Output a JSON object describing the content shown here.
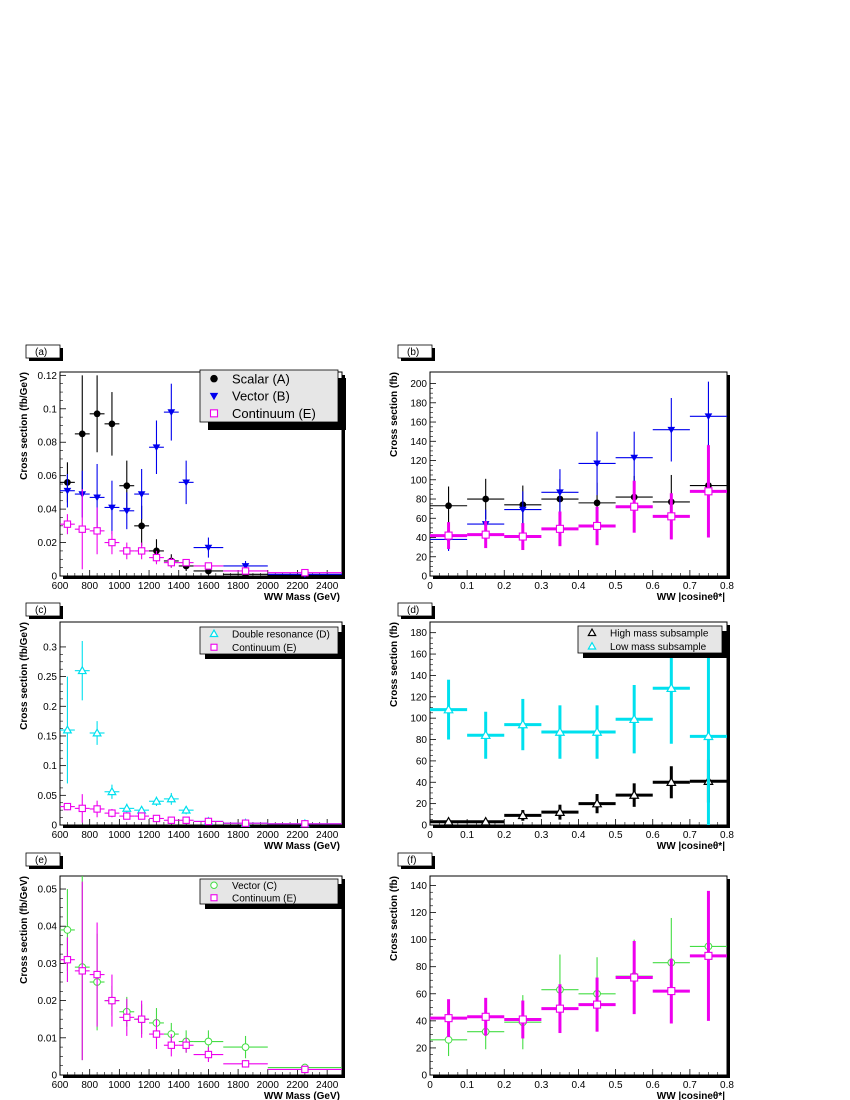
{
  "chart_data": [
    {
      "type": "scatter",
      "panel_label": "(a)",
      "xlabel": "WW Mass (GeV)",
      "ylabel": "Cross section (fb/GeV)",
      "xlim": [
        600,
        2500
      ],
      "ylim": [
        0,
        0.122
      ],
      "xticks": [
        600,
        800,
        1000,
        1200,
        1400,
        1600,
        1800,
        2000,
        2200,
        2400
      ],
      "yticks": [
        0,
        0.02,
        0.04,
        0.06,
        0.08,
        0.1,
        0.12
      ],
      "legend_position": "top-right",
      "legend_font": 13,
      "series": [
        {
          "name": "Scalar (A)",
          "marker": "circle-filled",
          "color": "#000000",
          "x": [
            650,
            750,
            850,
            950,
            1050,
            1150,
            1250,
            1350,
            1450,
            1600,
            1850,
            2250
          ],
          "xerr": [
            50,
            50,
            50,
            50,
            50,
            50,
            50,
            50,
            50,
            100,
            150,
            250
          ],
          "y": [
            0.056,
            0.085,
            0.097,
            0.091,
            0.054,
            0.03,
            0.015,
            0.009,
            0.006,
            0.003,
            0.001,
            0.0005
          ],
          "yerr": [
            0.012,
            0.035,
            0.023,
            0.019,
            0.015,
            0.012,
            0.007,
            0.004,
            0.003,
            0.002,
            0.001,
            0.0005
          ]
        },
        {
          "name": "Vector (B)",
          "marker": "triangle-down-filled",
          "color": "#0000ee",
          "x": [
            650,
            750,
            850,
            950,
            1050,
            1150,
            1250,
            1350,
            1450,
            1600,
            1850,
            2250
          ],
          "xerr": [
            50,
            50,
            50,
            50,
            50,
            50,
            50,
            50,
            50,
            100,
            150,
            250
          ],
          "y": [
            0.051,
            0.049,
            0.047,
            0.041,
            0.039,
            0.049,
            0.077,
            0.098,
            0.056,
            0.017,
            0.006,
            0.001
          ],
          "yerr": [
            0.01,
            0.014,
            0.02,
            0.016,
            0.011,
            0.015,
            0.016,
            0.017,
            0.013,
            0.006,
            0.003,
            0.001
          ]
        },
        {
          "name": "Continuum (E)",
          "marker": "square-open",
          "color": "#ee00ee",
          "x": [
            650,
            750,
            850,
            950,
            1050,
            1150,
            1250,
            1350,
            1450,
            1600,
            1850,
            2250
          ],
          "xerr": [
            50,
            50,
            50,
            50,
            50,
            50,
            50,
            50,
            50,
            100,
            150,
            250
          ],
          "y": [
            0.031,
            0.028,
            0.027,
            0.02,
            0.015,
            0.015,
            0.011,
            0.008,
            0.008,
            0.006,
            0.003,
            0.002
          ],
          "yerr": [
            0.006,
            0.024,
            0.014,
            0.007,
            0.005,
            0.005,
            0.004,
            0.003,
            0.002,
            0.002,
            0.001,
            0.001
          ]
        }
      ]
    },
    {
      "type": "scatter",
      "panel_label": "(b)",
      "xlabel": "WW |cosineθ*|",
      "ylabel": "Cross section (fb)",
      "xlim": [
        0,
        0.8
      ],
      "ylim": [
        0,
        212
      ],
      "xticks": [
        0,
        0.1,
        0.2,
        0.3,
        0.4,
        0.5,
        0.6,
        0.7,
        0.8
      ],
      "yticks": [
        0,
        20,
        40,
        60,
        80,
        100,
        120,
        140,
        160,
        180,
        200
      ],
      "series": [
        {
          "marker": "circle-filled",
          "color": "#000000",
          "x": [
            0.05,
            0.15,
            0.25,
            0.35,
            0.45,
            0.55,
            0.65,
            0.75
          ],
          "xerr": [
            0.05,
            0.05,
            0.05,
            0.05,
            0.05,
            0.05,
            0.05,
            0.05
          ],
          "y": [
            73,
            80,
            74,
            80,
            76,
            82,
            77,
            94
          ],
          "yerr": [
            20,
            21,
            20,
            21,
            21,
            22,
            28,
            43
          ]
        },
        {
          "marker": "triangle-down-filled",
          "color": "#0000ee",
          "x": [
            0.05,
            0.15,
            0.25,
            0.35,
            0.45,
            0.55,
            0.65,
            0.75
          ],
          "xerr": [
            0.05,
            0.05,
            0.05,
            0.05,
            0.05,
            0.05,
            0.05,
            0.05
          ],
          "y": [
            38,
            54,
            69,
            87,
            117,
            123,
            152,
            166
          ],
          "yerr": [
            12,
            15,
            19,
            24,
            33,
            27,
            33,
            36
          ]
        },
        {
          "marker": "square-open",
          "color": "#ee00ee",
          "thick": true,
          "x": [
            0.05,
            0.15,
            0.25,
            0.35,
            0.45,
            0.55,
            0.65,
            0.75
          ],
          "xerr": [
            0.05,
            0.05,
            0.05,
            0.05,
            0.05,
            0.05,
            0.05,
            0.05
          ],
          "y": [
            42,
            43,
            41,
            49,
            52,
            72,
            62,
            88
          ],
          "yerr": [
            14,
            14,
            14,
            18,
            20,
            27,
            24,
            48
          ]
        }
      ]
    },
    {
      "type": "scatter",
      "panel_label": "(c)",
      "xlabel": "WW Mass (GeV)",
      "ylabel": "Cross section (fb/GeV)",
      "xlim": [
        600,
        2500
      ],
      "ylim": [
        0,
        0.342
      ],
      "xticks": [
        600,
        800,
        1000,
        1200,
        1400,
        1600,
        1800,
        2000,
        2200,
        2400
      ],
      "yticks": [
        0,
        0.05,
        0.1,
        0.15,
        0.2,
        0.25,
        0.3
      ],
      "legend_position": "top-right",
      "legend_font": 10,
      "series": [
        {
          "name": "Double resonance (D)",
          "marker": "triangle-up-open",
          "color": "#00e0ee",
          "x": [
            650,
            750,
            850,
            950,
            1050,
            1150,
            1250,
            1350,
            1450,
            1600,
            1850,
            2250
          ],
          "xerr": [
            50,
            50,
            50,
            50,
            50,
            50,
            50,
            50,
            50,
            100,
            150,
            250
          ],
          "y": [
            0.16,
            0.26,
            0.155,
            0.056,
            0.028,
            0.025,
            0.04,
            0.044,
            0.025,
            0.006,
            0.003,
            0.002
          ],
          "yerr": [
            0.09,
            0.05,
            0.02,
            0.012,
            0.008,
            0.006,
            0.008,
            0.01,
            0.007,
            0.003,
            0.002,
            0.001
          ]
        },
        {
          "name": "Continuum (E)",
          "marker": "square-open",
          "color": "#ee00ee",
          "x": [
            650,
            750,
            850,
            950,
            1050,
            1150,
            1250,
            1350,
            1450,
            1600,
            1850,
            2250
          ],
          "xerr": [
            50,
            50,
            50,
            50,
            50,
            50,
            50,
            50,
            50,
            100,
            150,
            250
          ],
          "y": [
            0.031,
            0.028,
            0.027,
            0.02,
            0.015,
            0.015,
            0.011,
            0.008,
            0.008,
            0.006,
            0.003,
            0.002
          ],
          "yerr": [
            0.006,
            0.024,
            0.014,
            0.007,
            0.005,
            0.005,
            0.004,
            0.003,
            0.002,
            0.002,
            0.001,
            0.001
          ]
        }
      ]
    },
    {
      "type": "scatter",
      "panel_label": "(d)",
      "xlabel": "WW |cosineθ*|",
      "ylabel": "Cross section (fb)",
      "xlim": [
        0,
        0.8
      ],
      "ylim": [
        0,
        190
      ],
      "xticks": [
        0,
        0.1,
        0.2,
        0.3,
        0.4,
        0.5,
        0.6,
        0.7,
        0.8
      ],
      "yticks": [
        0,
        20,
        40,
        60,
        80,
        100,
        120,
        140,
        160,
        180
      ],
      "legend_position": "top-right",
      "legend_font": 10,
      "series": [
        {
          "name": "High mass subsample",
          "marker": "triangle-up-open",
          "color": "#000000",
          "thick": true,
          "x": [
            0.05,
            0.15,
            0.25,
            0.35,
            0.45,
            0.55,
            0.65,
            0.75
          ],
          "xerr": [
            0.05,
            0.05,
            0.05,
            0.05,
            0.05,
            0.05,
            0.05,
            0.05
          ],
          "y": [
            3,
            3,
            9,
            12,
            20,
            28,
            40,
            41
          ],
          "yerr": [
            2,
            2,
            5,
            7,
            9,
            11,
            15,
            20
          ]
        },
        {
          "name": "Low mass subsample",
          "marker": "triangle-up-open",
          "color": "#00e0ee",
          "thick": true,
          "x": [
            0.05,
            0.15,
            0.25,
            0.35,
            0.45,
            0.55,
            0.65,
            0.75
          ],
          "xerr": [
            0.05,
            0.05,
            0.05,
            0.05,
            0.05,
            0.05,
            0.05,
            0.05
          ],
          "y": [
            108,
            84,
            94,
            87,
            87,
            99,
            128,
            83
          ],
          "yerr": [
            28,
            22,
            24,
            25,
            25,
            32,
            52,
            83
          ]
        }
      ]
    },
    {
      "type": "scatter",
      "panel_label": "(e)",
      "xlabel": "WW Mass (GeV)",
      "ylabel": "Cross section (fb/GeV)",
      "xlim": [
        600,
        2500
      ],
      "ylim": [
        0,
        0.0535
      ],
      "xticks": [
        600,
        800,
        1000,
        1200,
        1400,
        1600,
        1800,
        2000,
        2200,
        2400
      ],
      "yticks": [
        0,
        0.01,
        0.02,
        0.03,
        0.04,
        0.05
      ],
      "legend_position": "top-right",
      "legend_font": 10,
      "series": [
        {
          "name": "Vector (C)",
          "marker": "circle-open",
          "color": "#44dd44",
          "x": [
            650,
            750,
            850,
            950,
            1050,
            1150,
            1250,
            1350,
            1450,
            1600,
            1850,
            2250
          ],
          "xerr": [
            50,
            50,
            50,
            50,
            50,
            50,
            50,
            50,
            50,
            100,
            150,
            250
          ],
          "y": [
            0.039,
            0.029,
            0.025,
            0.02,
            0.017,
            0.015,
            0.014,
            0.011,
            0.009,
            0.009,
            0.0075,
            0.002
          ],
          "yerr": [
            0.011,
            0.025,
            0.013,
            0.004,
            0.004,
            0.004,
            0.004,
            0.003,
            0.003,
            0.003,
            0.003,
            0.001
          ]
        },
        {
          "name": "Continuum (E)",
          "marker": "square-open",
          "color": "#ee00ee",
          "x": [
            650,
            750,
            850,
            950,
            1050,
            1150,
            1250,
            1350,
            1450,
            1600,
            1850,
            2250
          ],
          "xerr": [
            50,
            50,
            50,
            50,
            50,
            50,
            50,
            50,
            50,
            100,
            150,
            250
          ],
          "y": [
            0.031,
            0.028,
            0.027,
            0.02,
            0.0155,
            0.015,
            0.011,
            0.008,
            0.008,
            0.0055,
            0.003,
            0.0015
          ],
          "yerr": [
            0.006,
            0.024,
            0.014,
            0.007,
            0.005,
            0.005,
            0.004,
            0.003,
            0.002,
            0.002,
            0.001,
            0.001
          ]
        }
      ]
    },
    {
      "type": "scatter",
      "panel_label": "(f)",
      "xlabel": "WW |cosineθ*|",
      "ylabel": "Cross section (fb)",
      "xlim": [
        0,
        0.8
      ],
      "ylim": [
        0,
        147
      ],
      "xticks": [
        0,
        0.1,
        0.2,
        0.3,
        0.4,
        0.5,
        0.6,
        0.7,
        0.8
      ],
      "yticks": [
        0,
        20,
        40,
        60,
        80,
        100,
        120,
        140
      ],
      "series": [
        {
          "marker": "circle-open",
          "color": "#44dd44",
          "x": [
            0.05,
            0.15,
            0.25,
            0.35,
            0.45,
            0.55,
            0.65,
            0.75
          ],
          "xerr": [
            0.05,
            0.05,
            0.05,
            0.05,
            0.05,
            0.05,
            0.05,
            0.05
          ],
          "y": [
            26,
            32,
            39,
            63,
            60,
            73,
            83,
            95
          ],
          "yerr": [
            12,
            13,
            20,
            26,
            27,
            27,
            33,
            40
          ]
        },
        {
          "marker": "square-open",
          "color": "#ee00ee",
          "thick": true,
          "x": [
            0.05,
            0.15,
            0.25,
            0.35,
            0.45,
            0.55,
            0.65,
            0.75
          ],
          "xerr": [
            0.05,
            0.05,
            0.05,
            0.05,
            0.05,
            0.05,
            0.05,
            0.05
          ],
          "y": [
            42,
            43,
            41,
            49,
            52,
            72,
            62,
            88
          ],
          "yerr": [
            14,
            14,
            14,
            18,
            20,
            27,
            24,
            48
          ]
        }
      ]
    }
  ]
}
